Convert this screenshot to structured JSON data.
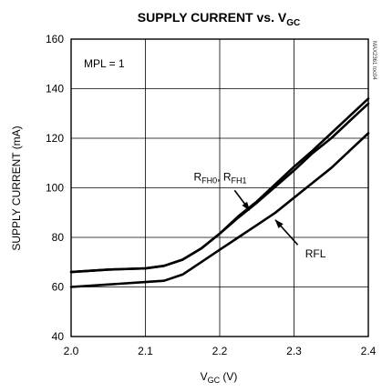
{
  "chart_data": {
    "type": "line",
    "title": "SUPPLY CURRENT vs. V",
    "title_sub": "GC",
    "xlabel_main": "V",
    "xlabel_sub": "GC",
    "xlabel_unit": " (V)",
    "ylabel": "SUPPLY CURRENT (mA)",
    "xlim": [
      2.0,
      2.4
    ],
    "ylim": [
      40,
      160
    ],
    "x_ticks": [
      2.0,
      2.1,
      2.2,
      2.3,
      2.4
    ],
    "x_tick_labels": [
      "2.0",
      "2.1",
      "2.2",
      "2.3",
      "2.4"
    ],
    "y_ticks": [
      40,
      60,
      80,
      100,
      120,
      140,
      160
    ],
    "y_tick_labels": [
      "40",
      "60",
      "80",
      "100",
      "120",
      "140",
      "160"
    ],
    "grid": true,
    "condition_label": "MPL = 1",
    "figure_code": "MAX2361 toc04",
    "series": [
      {
        "x": [
          2.0,
          2.05,
          2.1,
          2.125,
          2.15,
          2.175,
          2.2,
          2.225,
          2.25,
          2.275,
          2.3,
          2.325,
          2.35,
          2.375,
          2.4
        ],
        "values": [
          66,
          67,
          67.5,
          68.5,
          71,
          75.5,
          81.5,
          88,
          94,
          100.5,
          107,
          114,
          120,
          127,
          134
        ]
      },
      {
        "x": [
          2.0,
          2.05,
          2.1,
          2.125,
          2.15,
          2.175,
          2.2,
          2.225,
          2.25,
          2.275,
          2.3,
          2.325,
          2.35,
          2.375,
          2.4
        ],
        "values": [
          66,
          67,
          67.5,
          68.5,
          71,
          75.5,
          81.5,
          88.5,
          94.5,
          101.5,
          108.5,
          115,
          122,
          129,
          136
        ]
      },
      {
        "x": [
          2.0,
          2.05,
          2.1,
          2.125,
          2.15,
          2.175,
          2.2,
          2.225,
          2.25,
          2.275,
          2.3,
          2.325,
          2.35,
          2.375,
          2.4
        ],
        "values": [
          60,
          61,
          62,
          62.5,
          65,
          70,
          75,
          80,
          85,
          90,
          96,
          102,
          108,
          115,
          122
        ]
      }
    ],
    "annotations": [
      {
        "parts": [
          {
            "text": "R",
            "sub": false
          },
          {
            "text": "FH0",
            "sub": true
          },
          {
            "text": ", R",
            "sub": false
          },
          {
            "text": "FH1",
            "sub": true
          }
        ],
        "label_x": 2.165,
        "label_y": 103,
        "arrow_from": [
          2.22,
          99
        ],
        "arrow_to": [
          2.24,
          91
        ]
      },
      {
        "parts": [
          {
            "text": "RFL",
            "sub": false
          }
        ],
        "label_x": 2.315,
        "label_y": 72,
        "arrow_from": [
          2.305,
          77
        ],
        "arrow_to": [
          2.275,
          87
        ]
      }
    ]
  }
}
